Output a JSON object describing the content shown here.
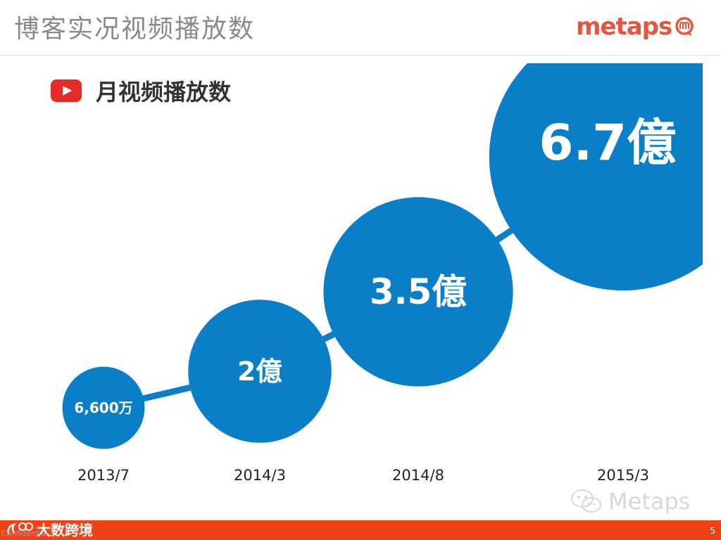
{
  "header": {
    "title": "博客实况视频播放数",
    "logo_text": "metaps"
  },
  "section": {
    "label": "月视频播放数",
    "icon": "youtube-icon"
  },
  "chart_data": {
    "type": "bubble",
    "title": "月视频播放数",
    "categories": [
      "2013/7",
      "2014/3",
      "2014/8",
      "2015/3"
    ],
    "values": [
      66000000,
      200000000,
      350000000,
      670000000
    ],
    "data_labels": [
      "6,600万",
      "2億",
      "3.5億",
      "6.7億"
    ],
    "bubble_color": "#0a7ec7",
    "connector": true
  },
  "watermark": {
    "text": "Metaps",
    "icon": "wechat-icon"
  },
  "footer": {
    "confidential": "Confidential",
    "brand_text": "大数跨境",
    "page_number": "5",
    "bar_color": "#ef4316"
  }
}
